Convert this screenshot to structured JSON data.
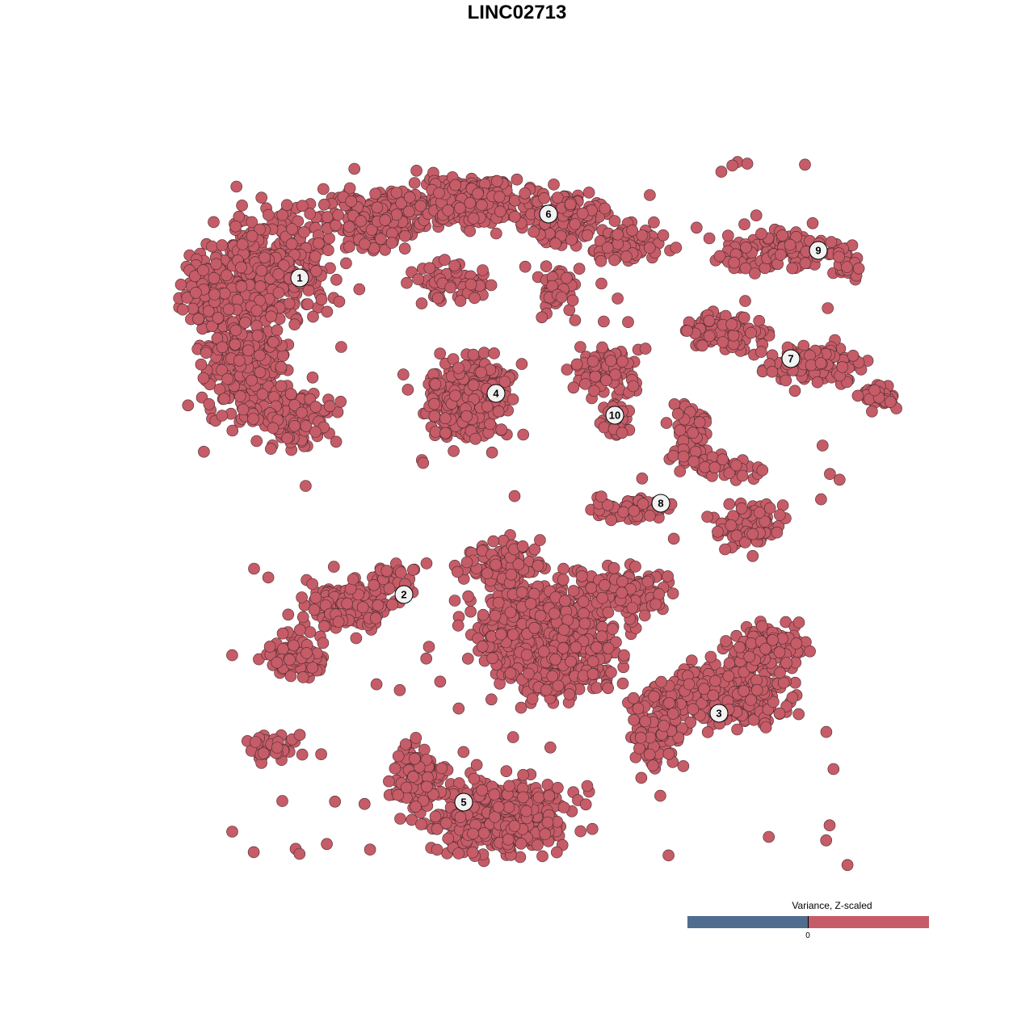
{
  "chart_data": {
    "type": "scatter",
    "title": "LINC02713",
    "xlabel": "",
    "ylabel": "",
    "grid": false,
    "point_color": "#c55c67",
    "point_stroke": "#4a2a2e",
    "cluster_labels": [
      "1",
      "2",
      "3",
      "4",
      "5",
      "6",
      "7",
      "8",
      "9",
      "10"
    ],
    "legend": {
      "title": "Variance, Z-scaled",
      "tick": "0",
      "low_color": "#506d8f",
      "high_color": "#c55c67",
      "placement": "bottom-right"
    }
  }
}
